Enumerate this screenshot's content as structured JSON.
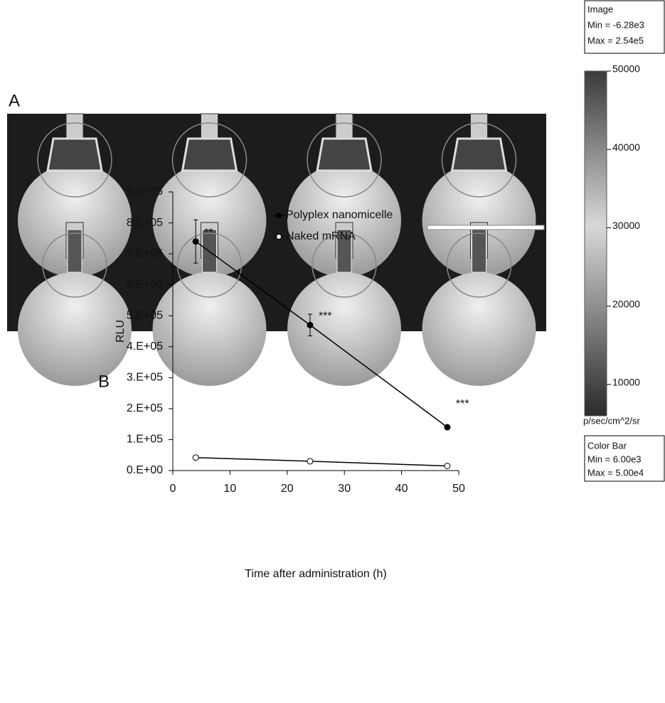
{
  "panel_a": {
    "label": "A"
  },
  "chart_data": [
    {
      "type": "line",
      "panel_label": "B",
      "x_label": "Time after administration (h)",
      "y_label": "RLU",
      "x": [
        4,
        24,
        48
      ],
      "series": [
        {
          "name": "Polyplex nanomicelle",
          "color": "#000000",
          "marker_fill": "#000000",
          "values": [
            740000,
            470000,
            140000
          ],
          "errors": [
            70000,
            35000,
            5000
          ]
        },
        {
          "name": "Naked mRNA",
          "color": "#000000",
          "marker_fill": "#ffffff",
          "values": [
            42000,
            30000,
            15000
          ]
        }
      ],
      "annotations": [
        "**",
        "***",
        "***"
      ],
      "xlim": [
        0,
        50
      ],
      "xticks": [
        0,
        10,
        20,
        30,
        40,
        50
      ],
      "ylim": [
        0,
        900000
      ],
      "yticks": [
        {
          "value": 0,
          "label": "0.E+00"
        },
        {
          "value": 100000,
          "label": "1.E+05"
        },
        {
          "value": 200000,
          "label": "2.E+05"
        },
        {
          "value": 300000,
          "label": "3.E+05"
        },
        {
          "value": 400000,
          "label": "4.E+05"
        },
        {
          "value": 500000,
          "label": "5.E+05"
        },
        {
          "value": 600000,
          "label": "6.E+05"
        },
        {
          "value": 700000,
          "label": "7.E+05"
        },
        {
          "value": 800000,
          "label": "8.E+05"
        },
        {
          "value": 900000,
          "label": "9.E+05"
        }
      ]
    },
    {
      "type": "colorbar",
      "header": [
        "Image",
        "Min = -6.28e3",
        "Max = 2.54e5"
      ],
      "unit": "p/sec/cm^2/sr",
      "footer": [
        "Color Bar",
        "Min = 6.00e3",
        "Max = 5.00e4"
      ],
      "ylim": [
        6000,
        50000
      ],
      "yticks": [
        10000,
        20000,
        30000,
        40000,
        50000
      ]
    }
  ]
}
